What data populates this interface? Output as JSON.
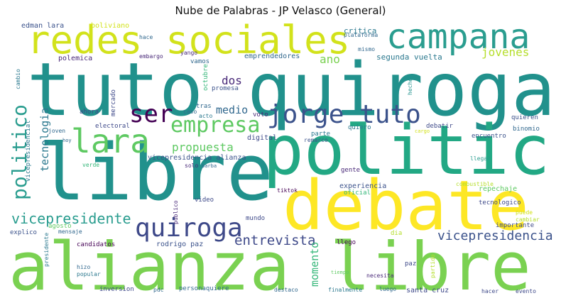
{
  "title": "Nube de Palabras - JP Velasco (General)",
  "words": [
    {
      "text": "tuto quiroga",
      "color": "#21918c",
      "vertical": false
    },
    {
      "text": "alianza libre",
      "color": "#7ad151",
      "vertical": false
    },
    {
      "text": "libre",
      "color": "#21918c",
      "vertical": false
    },
    {
      "text": "politica",
      "color": "#22a884",
      "vertical": false
    },
    {
      "text": "debate",
      "color": "#fde725",
      "vertical": false
    },
    {
      "text": "redes sociales",
      "color": "#d2e21b",
      "vertical": false
    },
    {
      "text": "campana",
      "color": "#2a9d8f",
      "vertical": false
    },
    {
      "text": "jorge tuto",
      "color": "#3b528b",
      "vertical": false
    },
    {
      "text": "lara",
      "color": "#5ec962",
      "vertical": false
    },
    {
      "text": "ser",
      "color": "#440154",
      "vertical": false
    },
    {
      "text": "empresa",
      "color": "#5ec962",
      "vertical": false
    },
    {
      "text": "politico",
      "color": "#2a9d8f",
      "vertical": true
    },
    {
      "text": "quiroga",
      "color": "#3e4989",
      "vertical": false
    },
    {
      "text": "vicepresidente",
      "color": "#2a9d8f",
      "vertical": false
    },
    {
      "text": "vicepresidencia",
      "color": "#3b528b",
      "vertical": false
    },
    {
      "text": "entrevista",
      "color": "#3e4989",
      "vertical": false
    },
    {
      "text": "jovenes",
      "color": "#b5de2b",
      "vertical": false
    },
    {
      "text": "propuesta",
      "color": "#5ec962",
      "vertical": false
    },
    {
      "text": "medio",
      "color": "#31688e",
      "vertical": false
    },
    {
      "text": "dos",
      "color": "#482878",
      "vertical": false
    },
    {
      "text": "ano",
      "color": "#7ad151",
      "vertical": false
    },
    {
      "text": "tecnologia",
      "color": "#2a788e",
      "vertical": true
    },
    {
      "text": "momento",
      "color": "#35b779",
      "vertical": true
    },
    {
      "text": "edman lara",
      "color": "#3b528b",
      "vertical": false
    },
    {
      "text": "boliviano",
      "color": "#d2e21b",
      "vertical": false
    },
    {
      "text": "hace",
      "color": "#31688e",
      "vertical": false
    },
    {
      "text": "critica",
      "color": "#2a788e",
      "vertical": false
    },
    {
      "text": "plataforma",
      "color": "#31688e",
      "vertical": false
    },
    {
      "text": "embargo",
      "color": "#482878",
      "vertical": false
    },
    {
      "text": "yango",
      "color": "#482878",
      "vertical": false
    },
    {
      "text": "emprendedores",
      "color": "#31688e",
      "vertical": false
    },
    {
      "text": "mismo",
      "color": "#31688e",
      "vertical": false
    },
    {
      "text": "segunda vuelta",
      "color": "#2a788e",
      "vertical": false
    },
    {
      "text": "polemica",
      "color": "#482878",
      "vertical": false
    },
    {
      "text": "vamos",
      "color": "#31688e",
      "vertical": false
    },
    {
      "text": "cambio",
      "color": "#2a788e",
      "vertical": true
    },
    {
      "text": "mercado",
      "color": "#3e4989",
      "vertical": true
    },
    {
      "text": "octubre",
      "color": "#35b779",
      "vertical": true
    },
    {
      "text": "promesa",
      "color": "#3b528b",
      "vertical": false
    },
    {
      "text": "hecho",
      "color": "#21918c",
      "vertical": true
    },
    {
      "text": "ahora",
      "color": "#3e4989",
      "vertical": false
    },
    {
      "text": "caso",
      "color": "#31688e",
      "vertical": false
    },
    {
      "text": "tras",
      "color": "#31688e",
      "vertical": false
    },
    {
      "text": "acto",
      "color": "#2a788e",
      "vertical": false
    },
    {
      "text": "voto",
      "color": "#482878",
      "vertical": false
    },
    {
      "text": "quieren",
      "color": "#3b528b",
      "vertical": false
    },
    {
      "text": "vicepresidencial",
      "color": "#2a788e",
      "vertical": true
    },
    {
      "text": "electoral",
      "color": "#3e4989",
      "vertical": false
    },
    {
      "text": "joven",
      "color": "#31688e",
      "vertical": false
    },
    {
      "text": "quiero",
      "color": "#2a788e",
      "vertical": false
    },
    {
      "text": "cargo",
      "color": "#d2e21b",
      "vertical": false
    },
    {
      "text": "debatir",
      "color": "#3e4989",
      "vertical": false
    },
    {
      "text": "binomio",
      "color": "#31688e",
      "vertical": false
    },
    {
      "text": "parte",
      "color": "#2a788e",
      "vertical": false
    },
    {
      "text": "encuentro",
      "color": "#3b528b",
      "vertical": false
    },
    {
      "text": "hoy",
      "color": "#31688e",
      "vertical": false
    },
    {
      "text": "digital",
      "color": "#3e4989",
      "vertical": false
    },
    {
      "text": "remarco",
      "color": "#3b528b",
      "vertical": false
    },
    {
      "text": "vicepresidencia alianza",
      "color": "#3b528b",
      "vertical": false
    },
    {
      "text": "llegar",
      "color": "#2a9d8f",
      "vertical": false
    },
    {
      "text": "solo",
      "color": "#482878",
      "vertical": false
    },
    {
      "text": "barba",
      "color": "#31688e",
      "vertical": false
    },
    {
      "text": "verde",
      "color": "#35b779",
      "vertical": false
    },
    {
      "text": "gente",
      "color": "#482878",
      "vertical": false
    },
    {
      "text": "combustible",
      "color": "#b5de2b",
      "vertical": false
    },
    {
      "text": "experiencia",
      "color": "#3b528b",
      "vertical": false
    },
    {
      "text": "oficial",
      "color": "#35b779",
      "vertical": false
    },
    {
      "text": "repechaje",
      "color": "#5ec962",
      "vertical": false
    },
    {
      "text": "tiktok",
      "color": "#440154",
      "vertical": false
    },
    {
      "text": "publico",
      "color": "#482878",
      "vertical": true
    },
    {
      "text": "video",
      "color": "#3e4989",
      "vertical": false
    },
    {
      "text": "tecnologico",
      "color": "#3e4989",
      "vertical": false
    },
    {
      "text": "puede",
      "color": "#d2e21b",
      "vertical": false
    },
    {
      "text": "cambiar",
      "color": "#b5de2b",
      "vertical": false
    },
    {
      "text": "mundo",
      "color": "#3e4989",
      "vertical": false
    },
    {
      "text": "agosto",
      "color": "#5ec962",
      "vertical": false
    },
    {
      "text": "explico",
      "color": "#3b528b",
      "vertical": false
    },
    {
      "text": "mensaje",
      "color": "#31688e",
      "vertical": false
    },
    {
      "text": "dia",
      "color": "#b5de2b",
      "vertical": false
    },
    {
      "text": "importante",
      "color": "#3e4989",
      "vertical": false
    },
    {
      "text": "candidatos",
      "color": "#440154",
      "vertical": false
    },
    {
      "text": "rodrigo paz",
      "color": "#3b528b",
      "vertical": false
    },
    {
      "text": "llego",
      "color": "#440154",
      "vertical": false
    },
    {
      "text": "partido",
      "color": "#b5de2b",
      "vertical": true
    },
    {
      "text": "presidente",
      "color": "#2a788e",
      "vertical": true
    },
    {
      "text": "hizo",
      "color": "#31688e",
      "vertical": false
    },
    {
      "text": "popular",
      "color": "#2a788e",
      "vertical": false
    },
    {
      "text": "paz",
      "color": "#3e4989",
      "vertical": false
    },
    {
      "text": "tiempo",
      "color": "#5ec962",
      "vertical": false
    },
    {
      "text": "necesita",
      "color": "#482878",
      "vertical": false
    },
    {
      "text": "inversion",
      "color": "#3e4989",
      "vertical": false
    },
    {
      "text": "pdc",
      "color": "#31688e",
      "vertical": false
    },
    {
      "text": "personaquiere",
      "color": "#31688e",
      "vertical": false
    },
    {
      "text": "destaco",
      "color": "#31688e",
      "vertical": false
    },
    {
      "text": "finalmente",
      "color": "#2a788e",
      "vertical": false
    },
    {
      "text": "luego",
      "color": "#31688e",
      "vertical": false
    },
    {
      "text": "santa cruz",
      "color": "#3e4989",
      "vertical": false
    },
    {
      "text": "hacer",
      "color": "#3e4989",
      "vertical": false
    },
    {
      "text": "evento",
      "color": "#3e4989",
      "vertical": false
    }
  ]
}
